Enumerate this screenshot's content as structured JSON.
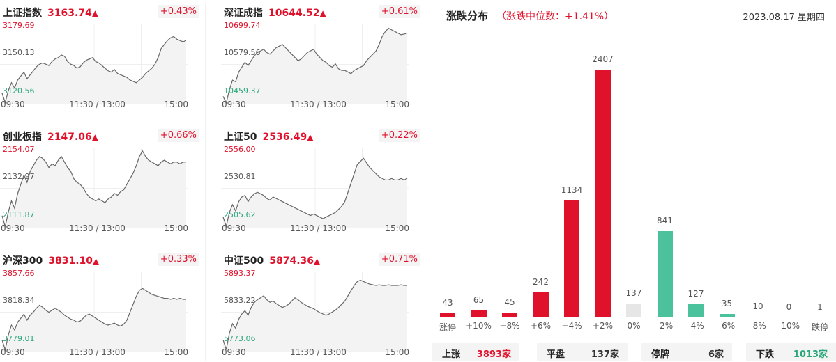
{
  "indices": [
    {
      "name": "上证指数",
      "price": "3163.74",
      "arrow": "▲",
      "pct": "+0.43%",
      "hi": "3179.69",
      "mid": "3150.13",
      "lo": "3120.56",
      "times": [
        "09:30",
        "11:30 / 13:00",
        "15:00"
      ],
      "series": [
        3128,
        3121,
        3130,
        3136,
        3132,
        3138,
        3141,
        3144,
        3139,
        3142,
        3145,
        3148,
        3150,
        3151,
        3150,
        3149,
        3152,
        3154,
        3155,
        3157,
        3156,
        3152,
        3150,
        3149,
        3147,
        3148,
        3151,
        3153,
        3154,
        3155,
        3152,
        3151,
        3149,
        3147,
        3145,
        3144,
        3146,
        3143,
        3142,
        3141,
        3140,
        3138,
        3137,
        3136,
        3138,
        3140,
        3143,
        3145,
        3147,
        3150,
        3155,
        3162,
        3165,
        3168,
        3170,
        3171,
        3169,
        3168,
        3167,
        3168
      ]
    },
    {
      "name": "深证成指",
      "price": "10644.52",
      "arrow": "▲",
      "pct": "+0.61%",
      "hi": "10699.74",
      "mid": "10579.56",
      "lo": "10459.37",
      "times": [
        "09:30",
        "11:30 / 13:00",
        "15:00"
      ],
      "series": [
        10480,
        10460,
        10500,
        10530,
        10525,
        10555,
        10570,
        10585,
        10575,
        10590,
        10605,
        10615,
        10620,
        10625,
        10615,
        10610,
        10620,
        10630,
        10635,
        10640,
        10630,
        10620,
        10610,
        10600,
        10590,
        10595,
        10605,
        10615,
        10620,
        10625,
        10610,
        10600,
        10590,
        10585,
        10575,
        10570,
        10580,
        10565,
        10560,
        10560,
        10555,
        10550,
        10560,
        10565,
        10570,
        10575,
        10590,
        10600,
        10610,
        10620,
        10640,
        10665,
        10680,
        10690,
        10685,
        10680,
        10675,
        10670,
        10672,
        10675
      ]
    },
    {
      "name": "创业板指",
      "price": "2147.06",
      "arrow": "▲",
      "pct": "+0.66%",
      "hi": "2154.07",
      "mid": "2132.97",
      "lo": "2111.87",
      "times": [
        "09:30",
        "11:30 / 13:00",
        "15:00"
      ],
      "series": [
        2118,
        2112,
        2120,
        2126,
        2122,
        2130,
        2135,
        2140,
        2136,
        2142,
        2145,
        2148,
        2150,
        2149,
        2147,
        2144,
        2146,
        2145,
        2148,
        2150,
        2147,
        2144,
        2142,
        2138,
        2136,
        2135,
        2133,
        2130,
        2128,
        2127,
        2126,
        2127,
        2126,
        2125,
        2127,
        2128,
        2130,
        2129,
        2131,
        2132,
        2135,
        2138,
        2141,
        2145,
        2150,
        2153,
        2150,
        2148,
        2147,
        2146,
        2145,
        2147,
        2148,
        2147,
        2146,
        2147,
        2147,
        2146,
        2147,
        2147
      ]
    },
    {
      "name": "上证50",
      "price": "2536.49",
      "arrow": "▲",
      "pct": "+0.22%",
      "hi": "2556.00",
      "mid": "2530.81",
      "lo": "2505.62",
      "times": [
        "09:30",
        "11:30 / 13:00",
        "15:00"
      ],
      "series": [
        2512,
        2506,
        2515,
        2520,
        2516,
        2522,
        2525,
        2526,
        2522,
        2525,
        2527,
        2528,
        2527,
        2526,
        2524,
        2523,
        2525,
        2524,
        2523,
        2522,
        2521,
        2520,
        2519,
        2518,
        2517,
        2516,
        2515,
        2514,
        2513,
        2514,
        2513,
        2512,
        2511,
        2512,
        2513,
        2514,
        2515,
        2517,
        2519,
        2522,
        2528,
        2534,
        2540,
        2546,
        2548,
        2550,
        2547,
        2544,
        2542,
        2540,
        2538,
        2537,
        2536,
        2536,
        2537,
        2536,
        2536,
        2537,
        2536,
        2537
      ]
    },
    {
      "name": "沪深300",
      "price": "3831.10",
      "arrow": "▲",
      "pct": "+0.33%",
      "hi": "3857.66",
      "mid": "3818.34",
      "lo": "3779.01",
      "times": [
        "09:30",
        "11:30 / 13:00",
        "15:00"
      ],
      "series": [
        3790,
        3780,
        3795,
        3805,
        3800,
        3808,
        3812,
        3816,
        3810,
        3815,
        3818,
        3822,
        3825,
        3823,
        3820,
        3818,
        3820,
        3822,
        3820,
        3818,
        3815,
        3813,
        3811,
        3810,
        3808,
        3809,
        3812,
        3815,
        3816,
        3814,
        3812,
        3810,
        3808,
        3806,
        3805,
        3806,
        3807,
        3805,
        3804,
        3806,
        3810,
        3818,
        3826,
        3834,
        3840,
        3842,
        3840,
        3838,
        3836,
        3835,
        3834,
        3833,
        3832,
        3832,
        3831,
        3832,
        3831,
        3832,
        3831,
        3831
      ]
    },
    {
      "name": "中证500",
      "price": "5874.36",
      "arrow": "▲",
      "pct": "+0.71%",
      "hi": "5893.37",
      "mid": "5833.22",
      "lo": "5773.06",
      "times": [
        "09:30",
        "11:30 / 13:00",
        "15:00"
      ],
      "series": [
        5790,
        5775,
        5800,
        5815,
        5808,
        5822,
        5830,
        5835,
        5828,
        5840,
        5848,
        5852,
        5855,
        5858,
        5852,
        5848,
        5850,
        5846,
        5843,
        5840,
        5842,
        5845,
        5850,
        5855,
        5852,
        5848,
        5845,
        5842,
        5840,
        5838,
        5835,
        5832,
        5830,
        5828,
        5830,
        5833,
        5836,
        5840,
        5845,
        5850,
        5858,
        5866,
        5874,
        5880,
        5882,
        5880,
        5878,
        5876,
        5875,
        5874,
        5875,
        5874,
        5874,
        5875,
        5874,
        5874,
        5874,
        5875,
        5874,
        5874
      ]
    }
  ],
  "distribution": {
    "title": "涨跌分布",
    "subtitle": "（涨跌中位数：+1.41%）",
    "date": "2023.08.17 星期四",
    "colors": {
      "up": "#e0112b",
      "flat": "#e6e6e6",
      "down": "#4bc19c"
    },
    "chart_data": {
      "type": "bar",
      "categories": [
        "涨停",
        "+10%",
        "+8%",
        "+6%",
        "+4%",
        "+2%",
        "0%",
        "-2%",
        "-4%",
        "-6%",
        "-8%",
        "-10%",
        "跌停"
      ],
      "values": [
        43,
        65,
        45,
        242,
        1134,
        2407,
        137,
        841,
        127,
        35,
        10,
        0,
        1
      ],
      "kinds": [
        "up",
        "up",
        "up",
        "up",
        "up",
        "up",
        "flat",
        "down",
        "down",
        "down",
        "down",
        "down",
        "down"
      ]
    },
    "summary": [
      {
        "label": "上涨",
        "value": "3893家",
        "color": "#e0112b"
      },
      {
        "label": "平盘",
        "value": "137家",
        "color": "#333333"
      },
      {
        "label": "停牌",
        "value": "6家",
        "color": "#333333"
      },
      {
        "label": "下跌",
        "value": "1013家",
        "color": "#2aa77a"
      }
    ]
  }
}
